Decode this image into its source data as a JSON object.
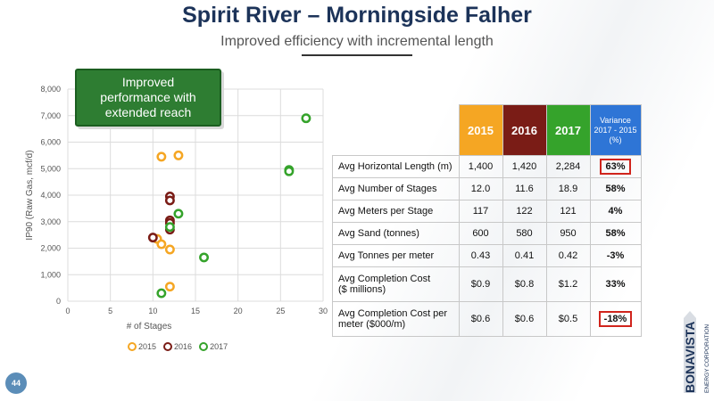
{
  "header": {
    "title": "Spirit River – Morningside Falher",
    "subtitle": "Improved efficiency with incremental length"
  },
  "callout": {
    "text_lines": [
      "Improved",
      "performance with",
      "extended reach"
    ]
  },
  "colors": {
    "2015": "#f5a623",
    "2016": "#7a1c16",
    "2017": "#35a32b",
    "variance": "#2e75d6",
    "title": "#1c3359"
  },
  "chart_data": {
    "type": "scatter",
    "xlabel": "# of Stages",
    "ylabel": "IP90 (Raw Gas, mcf/d)",
    "xlim": [
      0,
      30
    ],
    "ylim": [
      0,
      8000
    ],
    "xticks": [
      0,
      5,
      10,
      15,
      20,
      25,
      30
    ],
    "yticks": [
      0,
      1000,
      2000,
      3000,
      4000,
      5000,
      6000,
      7000,
      8000
    ],
    "ytick_labels": [
      "0",
      "1,000",
      "2,000",
      "3,000",
      "4,000",
      "5,000",
      "6,000",
      "7,000",
      "8,000"
    ],
    "grid": true,
    "legend_position": "bottom",
    "series": [
      {
        "name": "2015",
        "color": "#f5a623",
        "points": [
          [
            11,
            5450
          ],
          [
            13,
            5500
          ],
          [
            10.5,
            2350
          ],
          [
            11,
            2150
          ],
          [
            12,
            1950
          ],
          [
            12,
            550
          ]
        ]
      },
      {
        "name": "2016",
        "color": "#7a1c16",
        "points": [
          [
            12,
            3950
          ],
          [
            12,
            3800
          ],
          [
            12,
            3050
          ],
          [
            12,
            2950
          ],
          [
            12,
            2700
          ],
          [
            10,
            2400
          ]
        ]
      },
      {
        "name": "2017",
        "color": "#35a32b",
        "points": [
          [
            28,
            6900
          ],
          [
            26,
            4950
          ],
          [
            26,
            4900
          ],
          [
            13,
            3300
          ],
          [
            12,
            2800
          ],
          [
            16,
            1650
          ],
          [
            11,
            300
          ]
        ]
      }
    ]
  },
  "table": {
    "headers": [
      "2015",
      "2016",
      "2017"
    ],
    "variance_header": [
      "Variance",
      "2017 - 2015",
      "(%)"
    ],
    "rows": [
      {
        "label": "Avg Horizontal Length (m)",
        "v2015": "1,400",
        "v2016": "1,420",
        "v2017": "2,284",
        "variance": "63%",
        "boxed": true
      },
      {
        "label": "Avg Number of Stages",
        "v2015": "12.0",
        "v2016": "11.6",
        "v2017": "18.9",
        "variance": "58%",
        "boxed": false
      },
      {
        "label": "Avg Meters per Stage",
        "v2015": "117",
        "v2016": "122",
        "v2017": "121",
        "variance": "4%",
        "boxed": false
      },
      {
        "label": "Avg Sand (tonnes)",
        "v2015": "600",
        "v2016": "580",
        "v2017": "950",
        "variance": "58%",
        "boxed": false
      },
      {
        "label": "Avg Tonnes per meter",
        "v2015": "0.43",
        "v2016": "0.41",
        "v2017": "0.42",
        "variance": "-3%",
        "boxed": false
      },
      {
        "label_lines": [
          "Avg Completion Cost",
          "($ millions)"
        ],
        "v2015": "$0.9",
        "v2016": "$0.8",
        "v2017": "$1.2",
        "variance": "33%",
        "boxed": false
      },
      {
        "label_lines": [
          "Avg Completion Cost per",
          "meter ($000/m)"
        ],
        "v2015": "$0.6",
        "v2016": "$0.6",
        "v2017": "$0.5",
        "variance": "-18%",
        "boxed": true
      }
    ]
  },
  "logo": {
    "brand": "BONAVISTA",
    "tagline": "ENERGY CORPORATION"
  },
  "footer": {
    "page_number": "44"
  }
}
